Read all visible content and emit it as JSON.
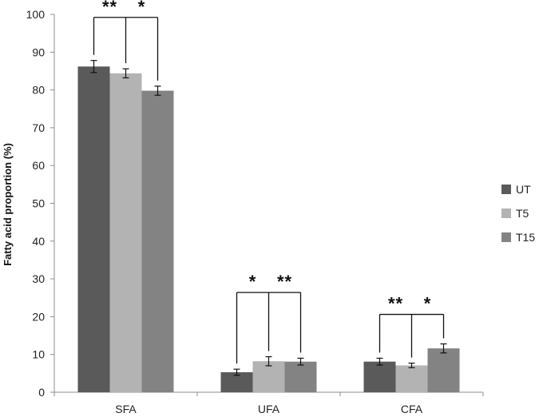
{
  "chart_data": {
    "type": "bar",
    "ylabel": "Fatty acid proportion (%)",
    "xlabel": "",
    "ylim": [
      0,
      100
    ],
    "yticks": [
      0,
      10,
      20,
      30,
      40,
      50,
      60,
      70,
      80,
      90,
      100
    ],
    "grid": false,
    "legend_position": "right",
    "categories": [
      "SFA",
      "UFA",
      "CFA"
    ],
    "series": [
      {
        "name": "UT",
        "color": "#5a5a5a",
        "values": [
          86.2,
          5.3,
          8.1
        ],
        "errors": [
          1.6,
          0.8,
          0.9
        ]
      },
      {
        "name": "T5",
        "color": "#b3b3b3",
        "values": [
          84.4,
          8.2,
          7.1
        ],
        "errors": [
          1.2,
          1.2,
          0.6
        ]
      },
      {
        "name": "T15",
        "color": "#838383",
        "values": [
          79.8,
          8.1,
          11.6
        ],
        "errors": [
          1.2,
          0.9,
          1.2
        ]
      }
    ],
    "significance": [
      {
        "category": "SFA",
        "y_top": 99.2,
        "left_stars": "**",
        "right_stars": "*"
      },
      {
        "category": "UFA",
        "y_top": 26.4,
        "left_stars": "*",
        "right_stars": "**"
      },
      {
        "category": "CFA",
        "y_top": 20.6,
        "left_stars": "**",
        "right_stars": "*"
      }
    ]
  }
}
